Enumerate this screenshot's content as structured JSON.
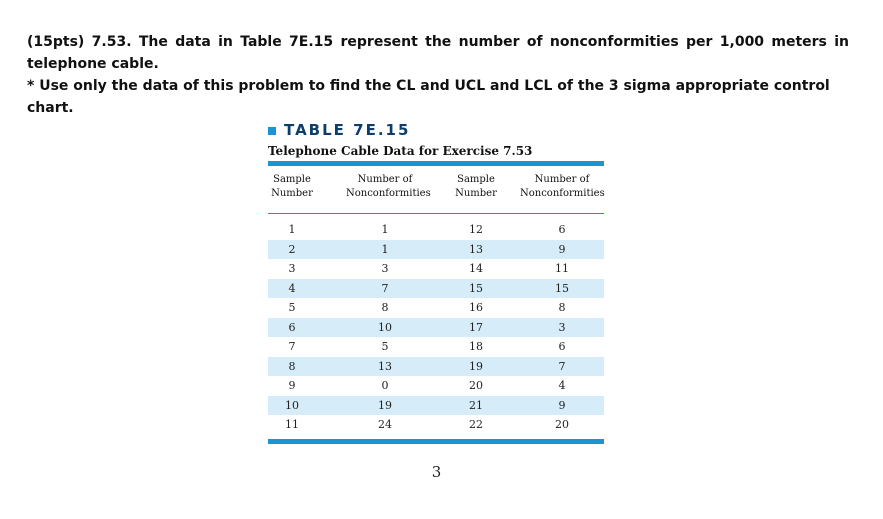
{
  "problem": {
    "line1": "(15pts) 7.53. The data in Table 7E.15 represent the number of nonconformities per 1,000 meters in",
    "line2": "telephone cable.",
    "instruction": "* Use only the data of this problem to find the CL and UCL and LCL of the 3 sigma appropriate control chart."
  },
  "table": {
    "label": "TABLE 7E.15",
    "caption": "Telephone Cable Data for Exercise 7.53",
    "headers": {
      "col1_line1": "Sample",
      "col1_line2": "Number",
      "col2_line1": "Number of",
      "col2_line2": "Nonconformities",
      "col3_line1": "Sample",
      "col3_line2": "Number",
      "col4_line1": "Number of",
      "col4_line2": "Nonconformities"
    },
    "rows": [
      {
        "s1": "1",
        "n1": "1",
        "s2": "12",
        "n2": "6"
      },
      {
        "s1": "2",
        "n1": "1",
        "s2": "13",
        "n2": "9"
      },
      {
        "s1": "3",
        "n1": "3",
        "s2": "14",
        "n2": "11"
      },
      {
        "s1": "4",
        "n1": "7",
        "s2": "15",
        "n2": "15"
      },
      {
        "s1": "5",
        "n1": "8",
        "s2": "16",
        "n2": "8"
      },
      {
        "s1": "6",
        "n1": "10",
        "s2": "17",
        "n2": "3"
      },
      {
        "s1": "7",
        "n1": "5",
        "s2": "18",
        "n2": "6"
      },
      {
        "s1": "8",
        "n1": "13",
        "s2": "19",
        "n2": "7"
      },
      {
        "s1": "9",
        "n1": "0",
        "s2": "20",
        "n2": "4"
      },
      {
        "s1": "10",
        "n1": "19",
        "s2": "21",
        "n2": "9"
      },
      {
        "s1": "11",
        "n1": "24",
        "s2": "22",
        "n2": "20"
      }
    ],
    "accent_color": "#1a94d3",
    "shade_color": "#d6ecf8",
    "label_color": "#0e3d6b"
  },
  "page_number": "3"
}
